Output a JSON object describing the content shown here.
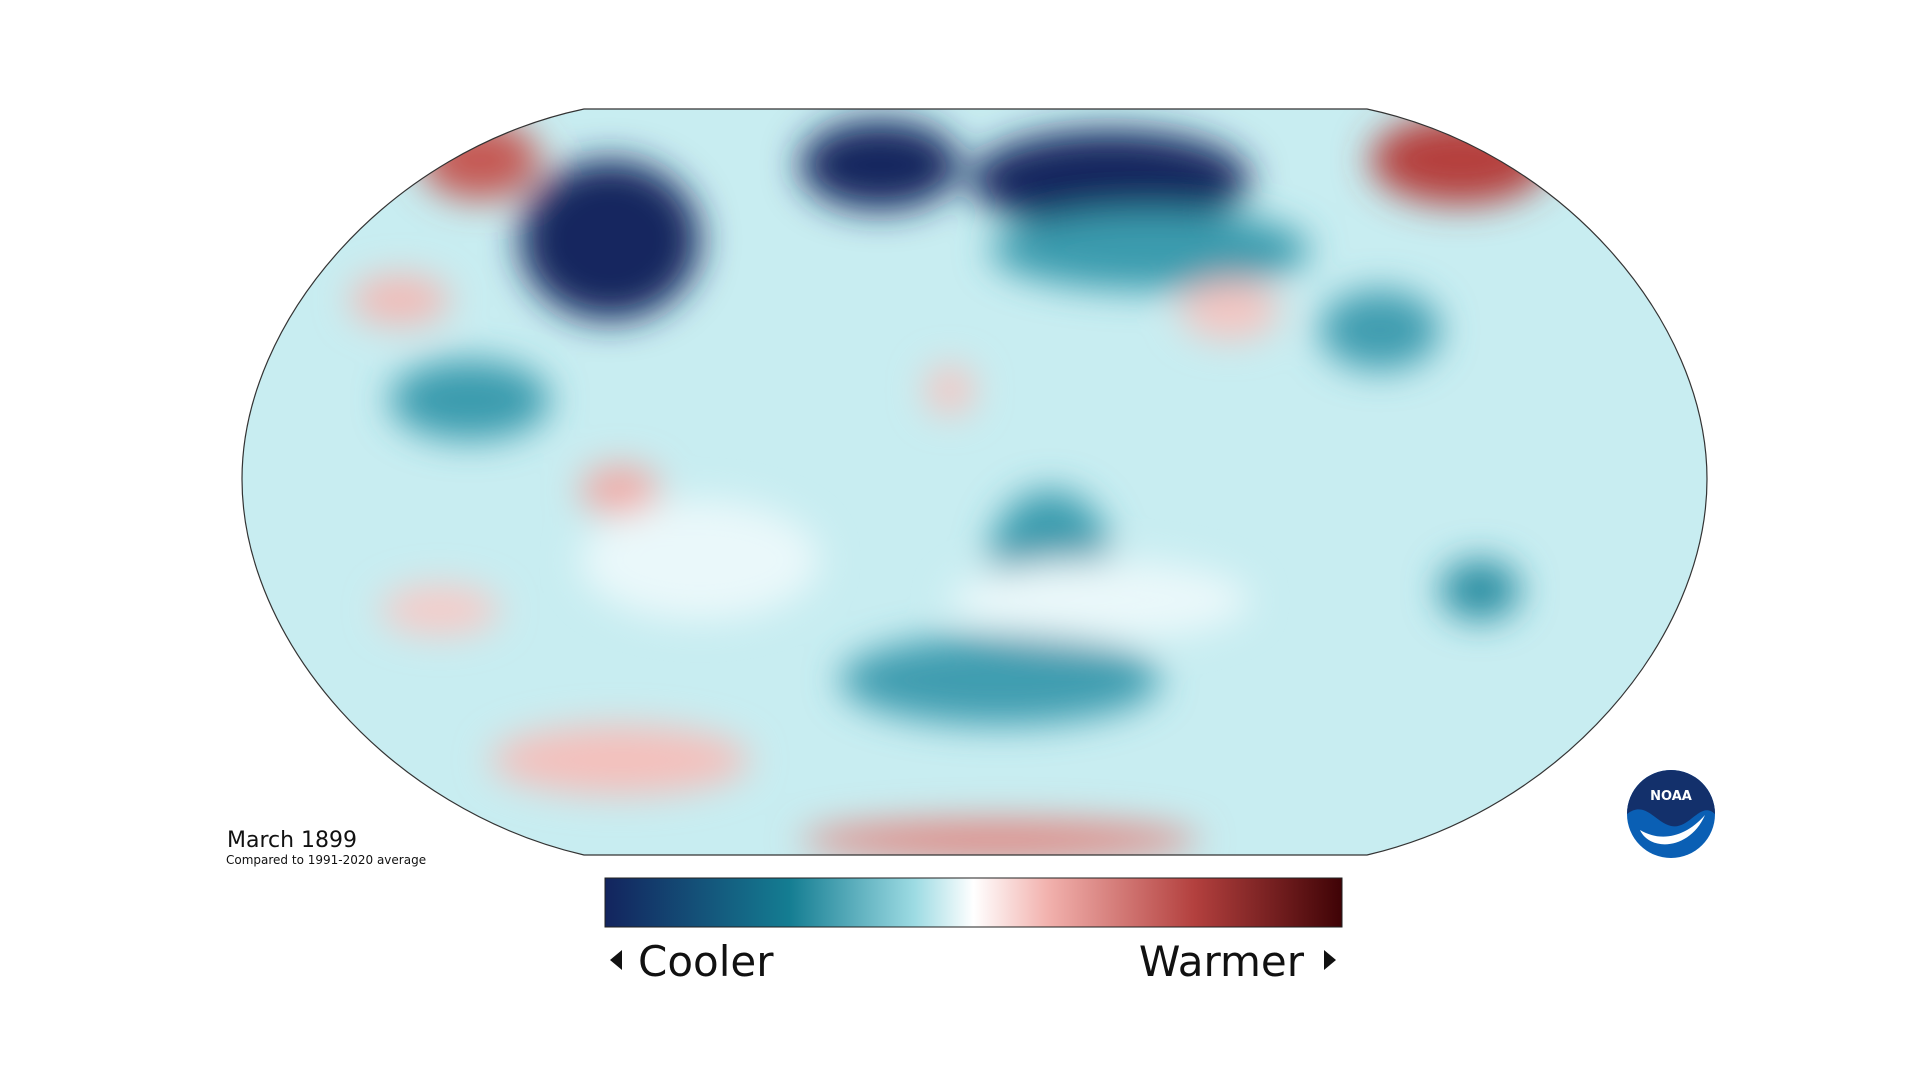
{
  "map": {
    "title": "March 1899",
    "subtitle": "Compared to 1991-2020 average"
  },
  "legend": {
    "low": "Cooler",
    "high": "Warmer"
  },
  "logo": {
    "text": "NOAA"
  }
}
